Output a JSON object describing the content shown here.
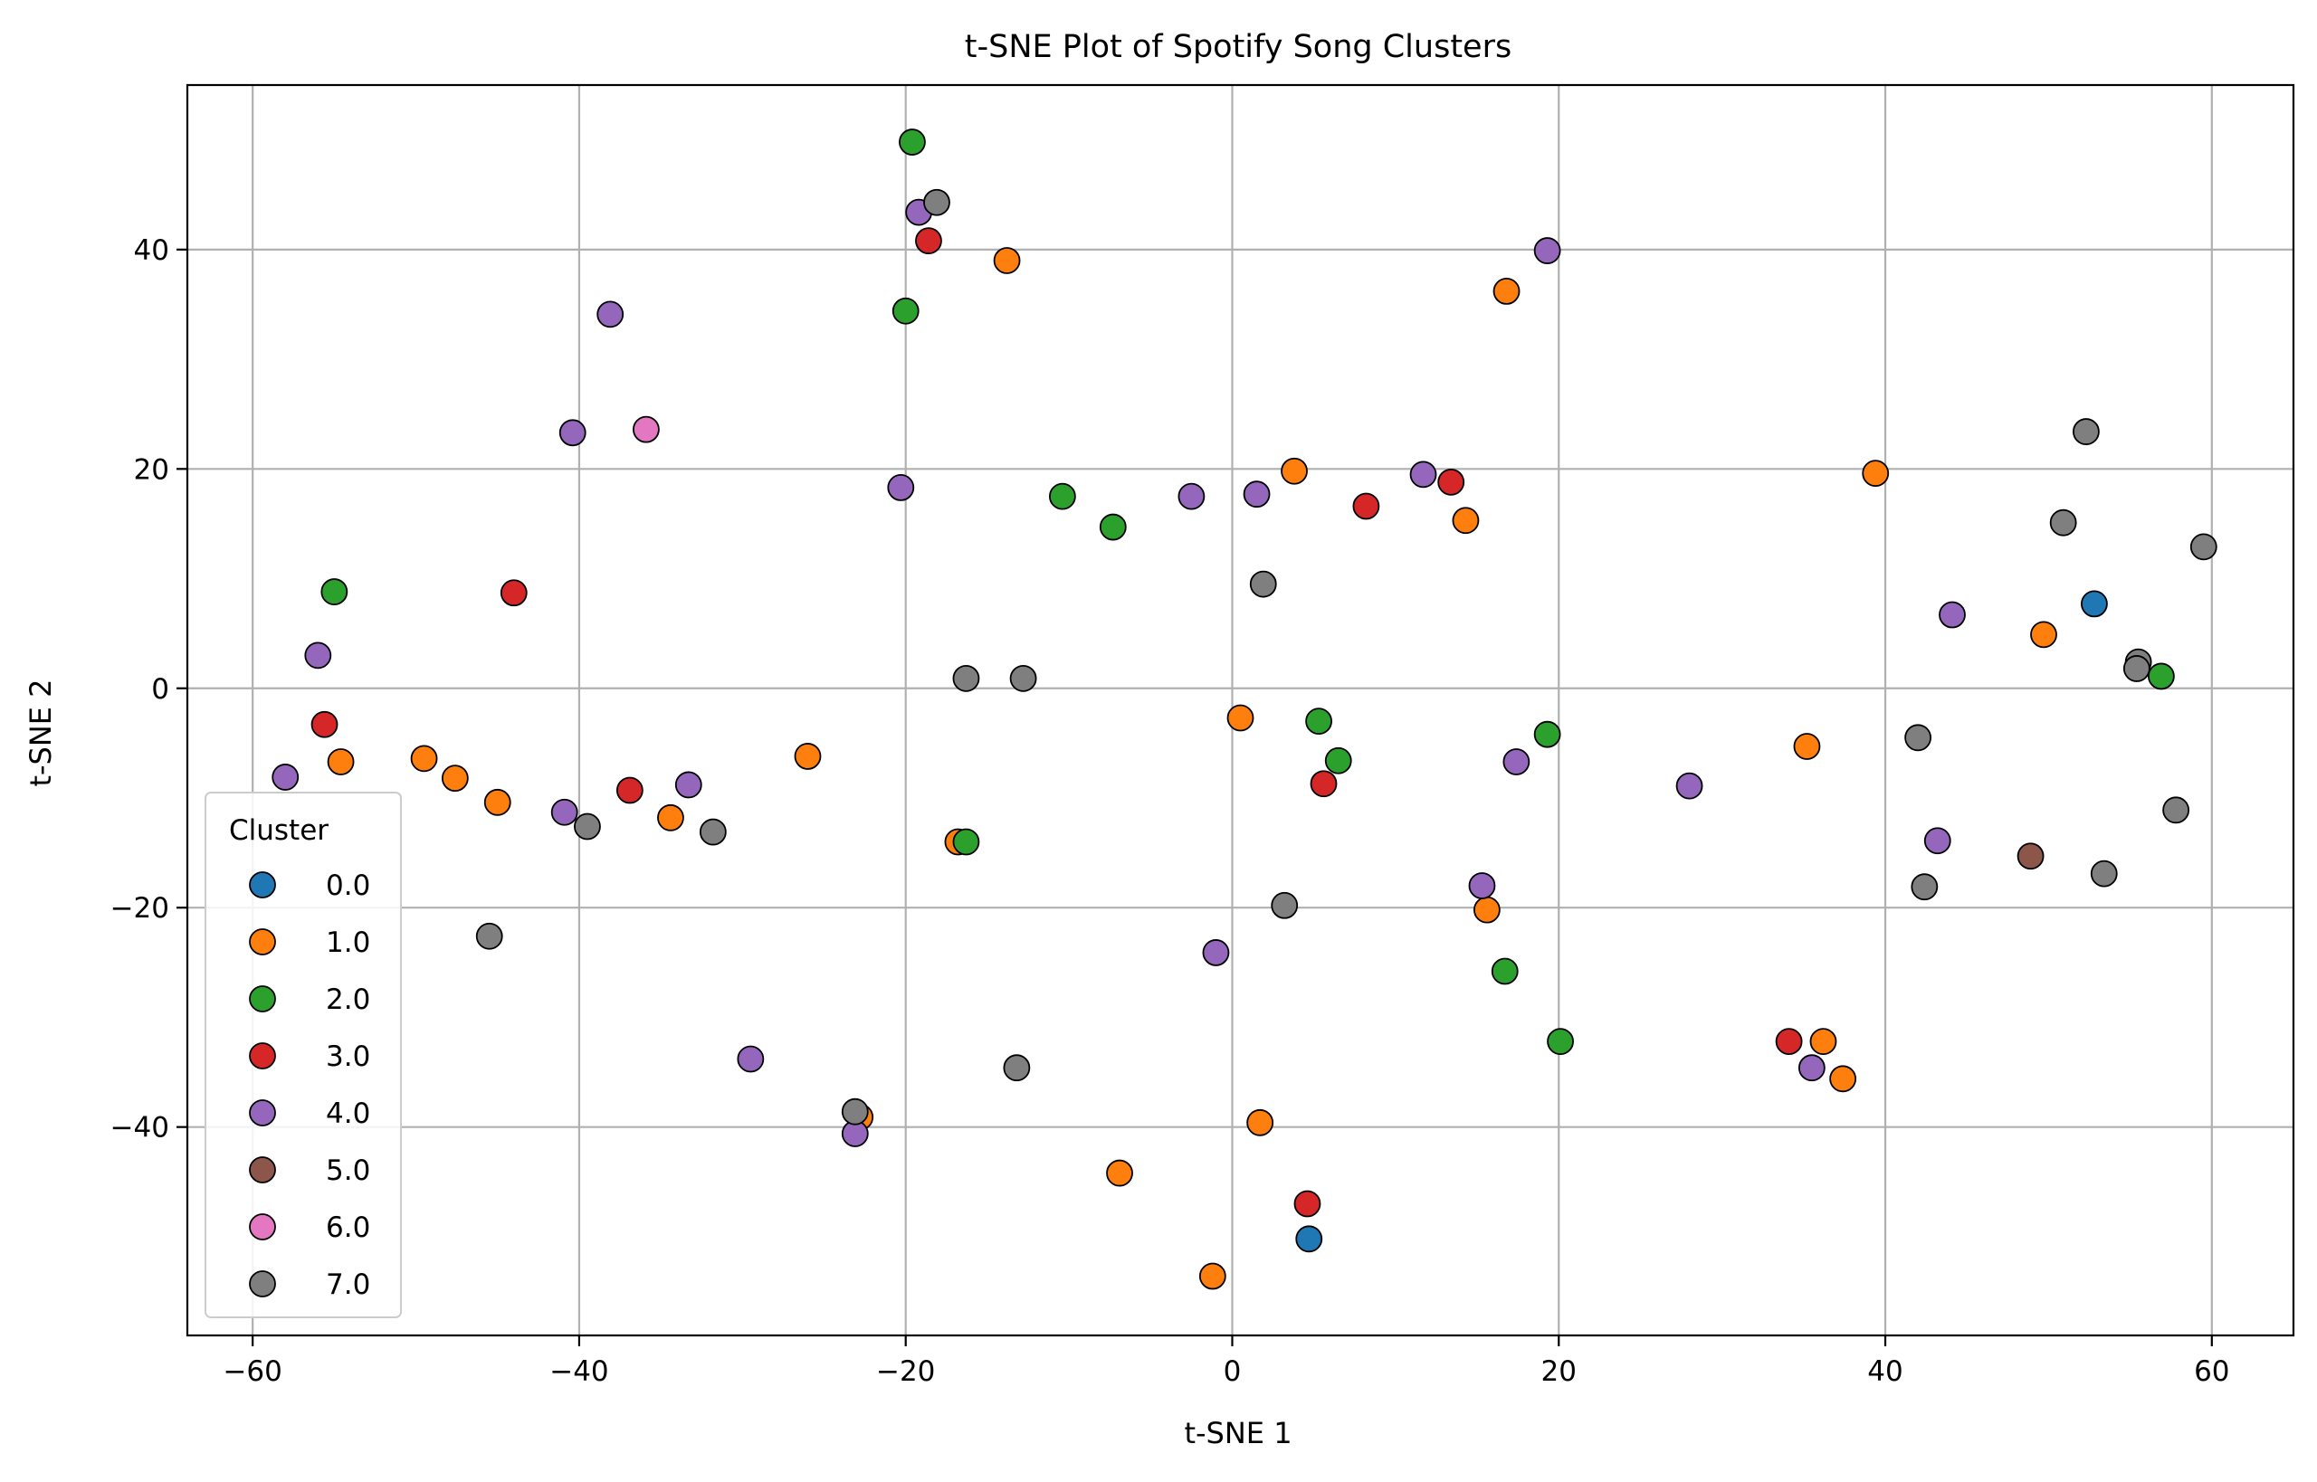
{
  "chart_data": {
    "type": "scatter",
    "title": "t-SNE Plot of Spotify Song Clusters",
    "xlabel": "t-SNE 1",
    "ylabel": "t-SNE 2",
    "xlim": [
      -64,
      65
    ],
    "ylim": [
      -59,
      55
    ],
    "xticks": [
      -60,
      -40,
      -20,
      0,
      20,
      40,
      60
    ],
    "yticks": [
      -40,
      -20,
      0,
      20,
      40
    ],
    "xtick_labels": [
      "−60",
      "−40",
      "−20",
      "0",
      "20",
      "40",
      "60"
    ],
    "ytick_labels": [
      "−40",
      "−20",
      "0",
      "20",
      "40"
    ],
    "grid": true,
    "legend": {
      "title": "Cluster",
      "placement": "lower-left"
    },
    "series": [
      {
        "name": "0.0",
        "color": "#1f77b4",
        "points": [
          [
            52.8,
            7.7
          ],
          [
            4.7,
            -50.2
          ]
        ]
      },
      {
        "name": "1.0",
        "color": "#ff7f0e",
        "points": [
          [
            -54.6,
            -6.7
          ],
          [
            -49.5,
            -6.4
          ],
          [
            -47.6,
            -8.2
          ],
          [
            -45.0,
            -10.4
          ],
          [
            -34.4,
            -11.8
          ],
          [
            -26.0,
            -6.2
          ],
          [
            -16.8,
            -14.0
          ],
          [
            -13.8,
            39.0
          ],
          [
            3.8,
            19.8
          ],
          [
            0.5,
            -2.7
          ],
          [
            14.3,
            15.3
          ],
          [
            16.8,
            36.2
          ],
          [
            15.6,
            -20.2
          ],
          [
            35.2,
            -5.3
          ],
          [
            39.4,
            19.6
          ],
          [
            49.7,
            4.9
          ],
          [
            36.2,
            -32.2
          ],
          [
            37.4,
            -35.6
          ],
          [
            -22.8,
            -39.1
          ],
          [
            -6.9,
            -44.2
          ],
          [
            1.7,
            -39.6
          ],
          [
            -1.2,
            -53.6
          ]
        ]
      },
      {
        "name": "2.0",
        "color": "#2ca02c",
        "points": [
          [
            -55.0,
            8.8
          ],
          [
            -19.6,
            49.8
          ],
          [
            -20.0,
            34.4
          ],
          [
            -10.4,
            17.5
          ],
          [
            -7.3,
            14.7
          ],
          [
            -16.3,
            -14.0
          ],
          [
            5.3,
            -3.0
          ],
          [
            6.5,
            -6.6
          ],
          [
            19.3,
            -4.2
          ],
          [
            16.7,
            -25.8
          ],
          [
            20.1,
            -32.2
          ],
          [
            56.9,
            1.1
          ]
        ]
      },
      {
        "name": "3.0",
        "color": "#d62728",
        "points": [
          [
            -18.6,
            40.8
          ],
          [
            -44.0,
            8.7
          ],
          [
            -55.6,
            -3.3
          ],
          [
            -36.9,
            -9.3
          ],
          [
            8.2,
            16.6
          ],
          [
            13.4,
            18.8
          ],
          [
            5.6,
            -8.7
          ],
          [
            34.1,
            -32.2
          ],
          [
            4.6,
            -47.0
          ]
        ]
      },
      {
        "name": "4.0",
        "color": "#9467bd",
        "points": [
          [
            -19.2,
            43.4
          ],
          [
            -38.1,
            34.1
          ],
          [
            -40.4,
            23.3
          ],
          [
            -20.3,
            18.3
          ],
          [
            -2.5,
            17.5
          ],
          [
            1.5,
            17.7
          ],
          [
            11.7,
            19.5
          ],
          [
            19.3,
            39.9
          ],
          [
            -56.0,
            3.0
          ],
          [
            -58.0,
            -8.1
          ],
          [
            -40.9,
            -11.3
          ],
          [
            -33.3,
            -8.8
          ],
          [
            17.4,
            -6.7
          ],
          [
            28.0,
            -8.9
          ],
          [
            15.3,
            -18.0
          ],
          [
            -1.0,
            -24.1
          ],
          [
            -29.5,
            -33.8
          ],
          [
            -23.1,
            -40.6
          ],
          [
            35.5,
            -34.6
          ],
          [
            44.1,
            6.7
          ],
          [
            43.2,
            -13.9
          ]
        ]
      },
      {
        "name": "5.0",
        "color": "#8c564b",
        "points": [
          [
            48.9,
            -15.3
          ]
        ]
      },
      {
        "name": "6.0",
        "color": "#e377c2",
        "points": [
          [
            -35.9,
            23.6
          ]
        ]
      },
      {
        "name": "7.0",
        "color": "#7f7f7f",
        "points": [
          [
            -18.1,
            44.3
          ],
          [
            1.9,
            9.5
          ],
          [
            -16.3,
            0.9
          ],
          [
            -12.8,
            0.9
          ],
          [
            -39.5,
            -12.6
          ],
          [
            -31.8,
            -13.1
          ],
          [
            -45.5,
            -22.6
          ],
          [
            3.2,
            -19.8
          ],
          [
            -13.2,
            -34.6
          ],
          [
            -23.1,
            -38.6
          ],
          [
            52.3,
            23.4
          ],
          [
            50.9,
            15.1
          ],
          [
            59.5,
            12.9
          ],
          [
            55.5,
            2.4
          ],
          [
            55.4,
            1.8
          ],
          [
            42.0,
            -4.5
          ],
          [
            57.8,
            -11.1
          ],
          [
            42.4,
            -18.1
          ],
          [
            53.4,
            -16.9
          ]
        ]
      }
    ]
  }
}
